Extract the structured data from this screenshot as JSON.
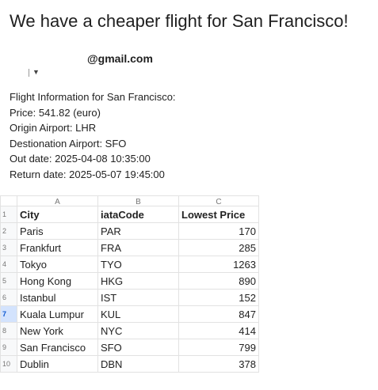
{
  "email": {
    "subject": "We have a cheaper flight for San Francisco!",
    "sender": "@gmail.com",
    "body_lines": [
      "Flight Information for San Francisco:",
      "Price: 541.82 (euro)",
      "Origin Airport: LHR",
      "Destionation Airport: SFO",
      "Out date: 2025-04-08 10:35:00",
      "Return date: 2025-05-07 19:45:00"
    ]
  },
  "sheet": {
    "column_letters": [
      "A",
      "B",
      "C"
    ],
    "row_numbers": [
      "1",
      "2",
      "3",
      "4",
      "5",
      "6",
      "7",
      "8",
      "9",
      "10"
    ],
    "header": [
      "City",
      "iataCode",
      "Lowest Price"
    ],
    "rows": [
      [
        "Paris",
        "PAR",
        "170"
      ],
      [
        "Frankfurt",
        "FRA",
        "285"
      ],
      [
        "Tokyo",
        "TYO",
        "1263"
      ],
      [
        "Hong Kong",
        "HKG",
        "890"
      ],
      [
        "Istanbul",
        "IST",
        "152"
      ],
      [
        "Kuala Lumpur",
        "KUL",
        "847"
      ],
      [
        "New York",
        "NYC",
        "414"
      ],
      [
        "San Francisco",
        "SFO",
        "799"
      ],
      [
        "Dublin",
        "DBN",
        "378"
      ]
    ]
  },
  "icons": {
    "recipient_toggle": "chevron-down-icon"
  },
  "colors": {
    "selected_row": "#d3e3fd",
    "grid": "#e2e2e2"
  }
}
